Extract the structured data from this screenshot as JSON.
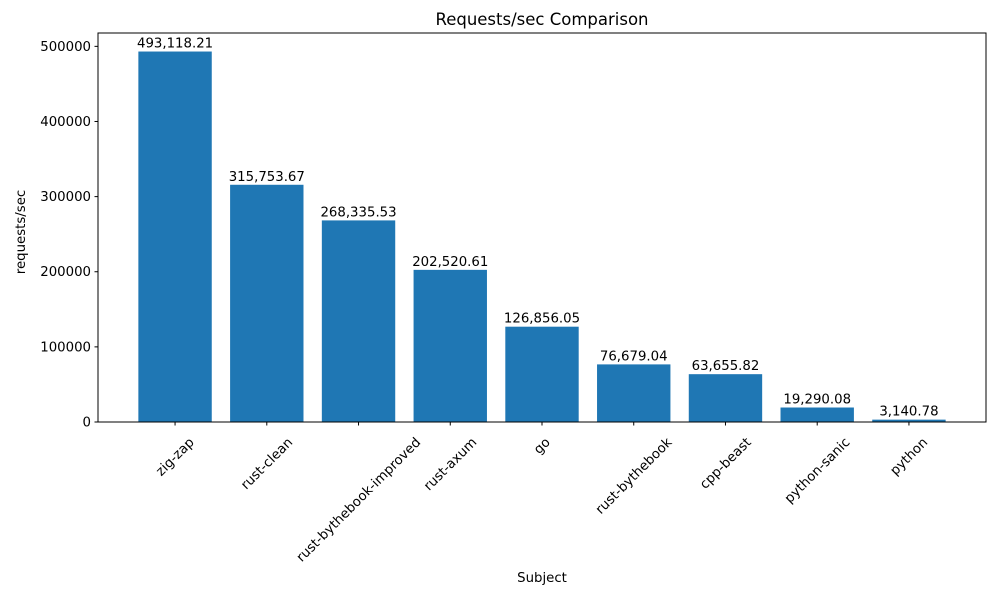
{
  "chart_data": {
    "type": "bar",
    "title": "Requests/sec Comparison",
    "xlabel": "Subject",
    "ylabel": "requests/sec",
    "categories": [
      "zig-zap",
      "rust-clean",
      "rust-bythebook-improved",
      "rust-axum",
      "go",
      "rust-bythebook",
      "cpp-beast",
      "python-sanic",
      "python"
    ],
    "values": [
      493118.21,
      315753.67,
      268335.53,
      202520.61,
      126856.05,
      76679.04,
      63655.82,
      19290.08,
      3140.78
    ],
    "value_labels": [
      "493,118.21",
      "315,753.67",
      "268,335.53",
      "202,520.61",
      "126,856.05",
      "76,679.04",
      "63,655.82",
      "19,290.08",
      "3,140.78"
    ],
    "yticks": [
      0,
      100000,
      200000,
      300000,
      400000,
      500000
    ],
    "ytick_labels": [
      "0",
      "100000",
      "200000",
      "300000",
      "400000",
      "500000"
    ],
    "ylim": [
      0,
      517774
    ],
    "xtick_rotation_deg": 45,
    "bar_color": "#1f77b4",
    "spine_color": "#000000",
    "text_color": "#000000",
    "background_color": "#ffffff",
    "grid": false,
    "legend": null
  }
}
